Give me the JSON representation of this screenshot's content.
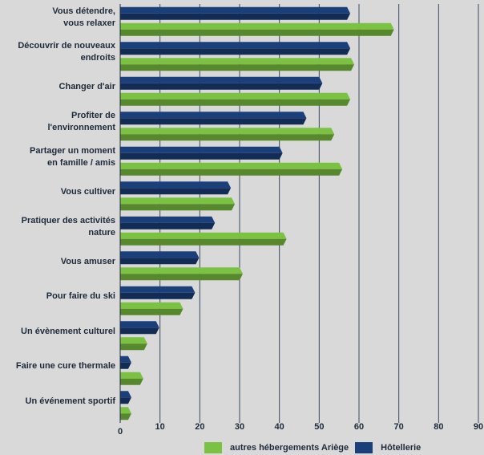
{
  "chart_data": {
    "type": "bar",
    "orientation": "horizontal",
    "categories": [
      "Vous détendre,\nvous relaxer",
      "Découvrir de nouveaux\nendroits",
      "Changer d'air",
      "Profiter de\nl'environnement",
      "Partager un moment\nen famille / amis",
      "Vous cultiver",
      "Pratiquer des activités\nnature",
      "Vous amuser",
      "Pour faire du ski",
      "Un évènement culturel",
      "Faire une cure thermale",
      "Un événement sportif"
    ],
    "series": [
      {
        "name": "Hôtellerie",
        "color": "#1a3f7a",
        "values": [
          57,
          57,
          50,
          46,
          40,
          27,
          23,
          19,
          18,
          9,
          2,
          2
        ]
      },
      {
        "name": "autres hébergements Ariège",
        "color": "#7cc242",
        "values": [
          68,
          58,
          57,
          53,
          55,
          28,
          41,
          30,
          15,
          6,
          5,
          2
        ]
      }
    ],
    "xlim": [
      0,
      90
    ],
    "xticks": [
      "0",
      "10",
      "20",
      "30",
      "40",
      "50",
      "60",
      "70",
      "80",
      "90"
    ],
    "grid": true,
    "legend_position": "bottom"
  },
  "legend": {
    "items": [
      {
        "label": "autres hébergements Ariège",
        "color": "#7cc242"
      },
      {
        "label": "Hôtellerie",
        "color": "#1a3f7a"
      }
    ]
  }
}
